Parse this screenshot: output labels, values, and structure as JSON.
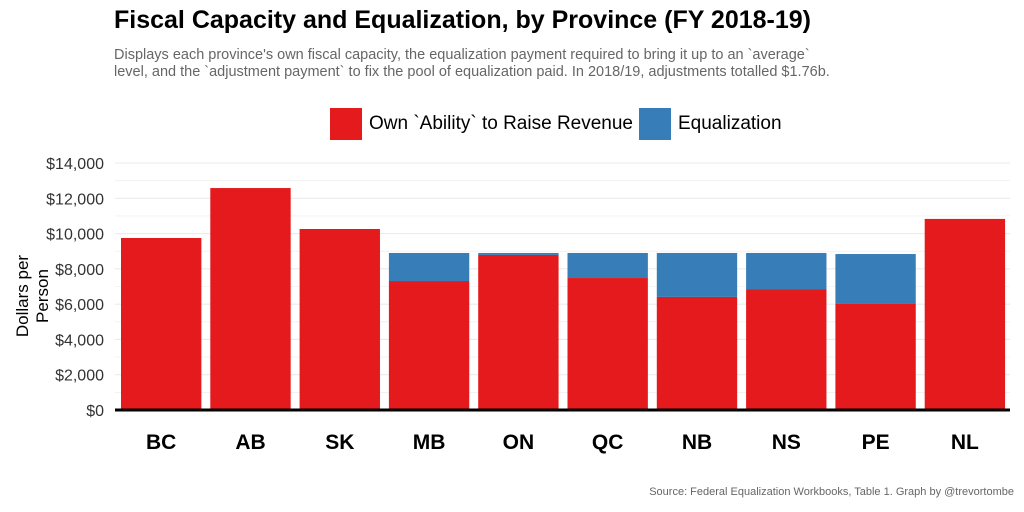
{
  "chart_data": {
    "type": "bar",
    "stacked": true,
    "title": "Fiscal Capacity and Equalization, by Province (FY 2018-19)",
    "subtitle_lines": [
      "Displays each province's own fiscal capacity, the equalization payment required to bring it up to an `average`",
      "level, and the `adjustment payment` to fix the pool of equalization paid. In 2018/19, adjustments totalled $1.76b."
    ],
    "xlabel": "",
    "ylabel": "Dollars per Person",
    "ylim": [
      0,
      14000
    ],
    "yticks": [
      0,
      2000,
      4000,
      6000,
      8000,
      10000,
      12000,
      14000
    ],
    "ytick_labels": [
      "$0",
      "$2,000",
      "$4,000",
      "$6,000",
      "$8,000",
      "$10,000",
      "$12,000",
      "$14,000"
    ],
    "grid": true,
    "legend_position": "top",
    "categories": [
      "BC",
      "AB",
      "SK",
      "MB",
      "ON",
      "QC",
      "NB",
      "NS",
      "PE",
      "NL"
    ],
    "series": [
      {
        "name": "Own `Ability` to Raise Revenue",
        "color": "#E41A1C",
        "values": [
          9750,
          12580,
          10260,
          7310,
          8790,
          7480,
          6410,
          6830,
          6010,
          10830
        ]
      },
      {
        "name": "Equalization",
        "color": "#377EB8",
        "values": [
          0,
          0,
          0,
          1590,
          110,
          1420,
          2490,
          2070,
          2830,
          0
        ]
      }
    ],
    "source": "Source: Federal Equalization Workbooks, Table 1. Graph by @trevortombe"
  }
}
